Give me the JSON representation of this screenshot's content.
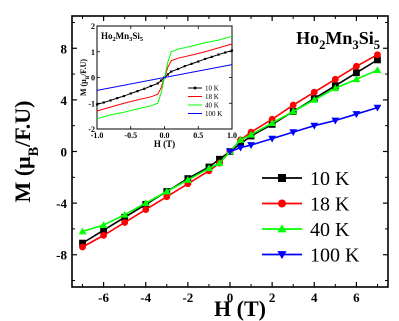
{
  "chart_data": [
    {
      "type": "line",
      "title": "Ho2Mn3Si5",
      "title_parts": {
        "el1": "Ho",
        "n1": "2",
        "el2": "Mn",
        "n2": "3",
        "el3": "Si",
        "n3": "5"
      },
      "xlabel": "H (T)",
      "ylabel_parts": {
        "pre": "M (",
        "mu": "μ",
        "sub": "B",
        "post": "/F.U)"
      },
      "xlim": [
        -7.5,
        7.5
      ],
      "ylim": [
        -10.5,
        10.5
      ],
      "xticks": [
        -6,
        -4,
        -2,
        0,
        2,
        4,
        6
      ],
      "xtick_labels": [
        "-6",
        "-4",
        "-2",
        "0",
        "2",
        "4",
        "6"
      ],
      "yticks": [
        -8,
        -4,
        0,
        4,
        8
      ],
      "ytick_labels": [
        "-8",
        "-4",
        "0",
        "4",
        "8"
      ],
      "legend_position": "bottom-right",
      "series": [
        {
          "name": "10 K",
          "color": "#000000",
          "marker": "square",
          "x": [
            -7,
            -6,
            -5,
            -4,
            -3,
            -2,
            -1,
            -0.5,
            0,
            0.5,
            1,
            2,
            3,
            4,
            5,
            6,
            7
          ],
          "y": [
            -7.1,
            -6.1,
            -5.1,
            -4.1,
            -3.1,
            -2.1,
            -1.2,
            -0.6,
            0,
            0.6,
            1.2,
            2.1,
            3.1,
            4.1,
            5.1,
            6.1,
            7.1
          ]
        },
        {
          "name": "18 K",
          "color": "#ff0000",
          "marker": "circle",
          "x": [
            -7,
            -6,
            -5,
            -4,
            -3,
            -2,
            -1,
            -0.5,
            0,
            0.5,
            1,
            2,
            3,
            4,
            5,
            6,
            7
          ],
          "y": [
            -7.4,
            -6.5,
            -5.5,
            -4.5,
            -3.5,
            -2.5,
            -1.5,
            -0.9,
            0,
            0.9,
            1.5,
            2.5,
            3.6,
            4.6,
            5.6,
            6.6,
            7.5
          ]
        },
        {
          "name": "40 K",
          "color": "#00ff00",
          "marker": "triangle-up",
          "x": [
            -7,
            -6,
            -5,
            -4,
            -3,
            -2,
            -1,
            -0.5,
            0,
            0.5,
            1,
            2,
            3,
            4,
            5,
            6,
            7
          ],
          "y": [
            -6.2,
            -5.7,
            -4.9,
            -4.0,
            -3.1,
            -2.2,
            -1.3,
            -0.9,
            0,
            0.9,
            1.3,
            2.2,
            3.1,
            4.0,
            4.9,
            5.6,
            6.3
          ]
        },
        {
          "name": "100 K",
          "color": "#0000ff",
          "marker": "triangle-down",
          "x": [
            0,
            0.5,
            1,
            2,
            3,
            4,
            5,
            6,
            7
          ],
          "y": [
            0,
            0.3,
            0.5,
            1.0,
            1.5,
            2.0,
            2.4,
            2.9,
            3.4
          ]
        }
      ]
    },
    {
      "type": "line",
      "title": "Ho2Mn3Si5",
      "title_parts": {
        "el1": "Ho",
        "n1": "2",
        "el2": "Mn",
        "n2": "3",
        "el3": "Si",
        "n3": "5"
      },
      "xlabel": "H (T)",
      "ylabel_parts": {
        "pre": "M (",
        "mu": "μ",
        "sub": "B",
        "post": "/F.U)"
      },
      "xlim": [
        -1.0,
        1.0
      ],
      "ylim": [
        -2.0,
        2.0
      ],
      "xticks": [
        -1.0,
        -0.5,
        0.0,
        0.5,
        1.0
      ],
      "xtick_labels": [
        "-1.0",
        "-0.5",
        "0.0",
        "0.5",
        "1.0"
      ],
      "yticks": [
        -2,
        -1,
        0,
        1,
        2
      ],
      "ytick_labels": [
        "-2",
        "-1",
        "0",
        "1",
        "2"
      ],
      "legend_position": "bottom-right",
      "series": [
        {
          "name": "10 K",
          "color": "#000000",
          "marker": "square",
          "x": [
            -1.0,
            -0.9,
            -0.8,
            -0.7,
            -0.6,
            -0.5,
            -0.4,
            -0.3,
            -0.2,
            -0.1,
            -0.05,
            0,
            0.05,
            0.1,
            0.2,
            0.3,
            0.4,
            0.5,
            0.6,
            0.7,
            0.8,
            0.9,
            1.0
          ],
          "y": [
            -1.05,
            -0.97,
            -0.89,
            -0.8,
            -0.72,
            -0.62,
            -0.53,
            -0.44,
            -0.33,
            -0.23,
            -0.12,
            0,
            0.12,
            0.23,
            0.33,
            0.44,
            0.53,
            0.62,
            0.72,
            0.8,
            0.89,
            0.97,
            1.05
          ]
        },
        {
          "name": "18 K",
          "color": "#ff0000",
          "marker": "none",
          "x": [
            -1.0,
            -0.8,
            -0.6,
            -0.4,
            -0.2,
            -0.1,
            -0.05,
            0,
            0.05,
            0.1,
            0.2,
            0.4,
            0.6,
            0.8,
            1.0
          ],
          "y": [
            -1.3,
            -1.15,
            -1.0,
            -0.87,
            -0.75,
            -0.65,
            -0.4,
            0,
            0.4,
            0.65,
            0.75,
            0.87,
            1.0,
            1.15,
            1.3
          ]
        },
        {
          "name": "40 K",
          "color": "#00ff00",
          "marker": "none",
          "x": [
            -1.0,
            -0.8,
            -0.6,
            -0.4,
            -0.2,
            -0.1,
            -0.05,
            0,
            0.05,
            0.1,
            0.2,
            0.4,
            0.6,
            0.8,
            1.0
          ],
          "y": [
            -1.6,
            -1.45,
            -1.35,
            -1.22,
            -1.1,
            -1.0,
            -0.6,
            0,
            0.6,
            1.0,
            1.1,
            1.22,
            1.35,
            1.45,
            1.6
          ]
        },
        {
          "name": "100 K",
          "color": "#0000ff",
          "marker": "none",
          "x": [
            -1.0,
            1.0
          ],
          "y": [
            -0.5,
            0.5
          ]
        }
      ]
    }
  ]
}
